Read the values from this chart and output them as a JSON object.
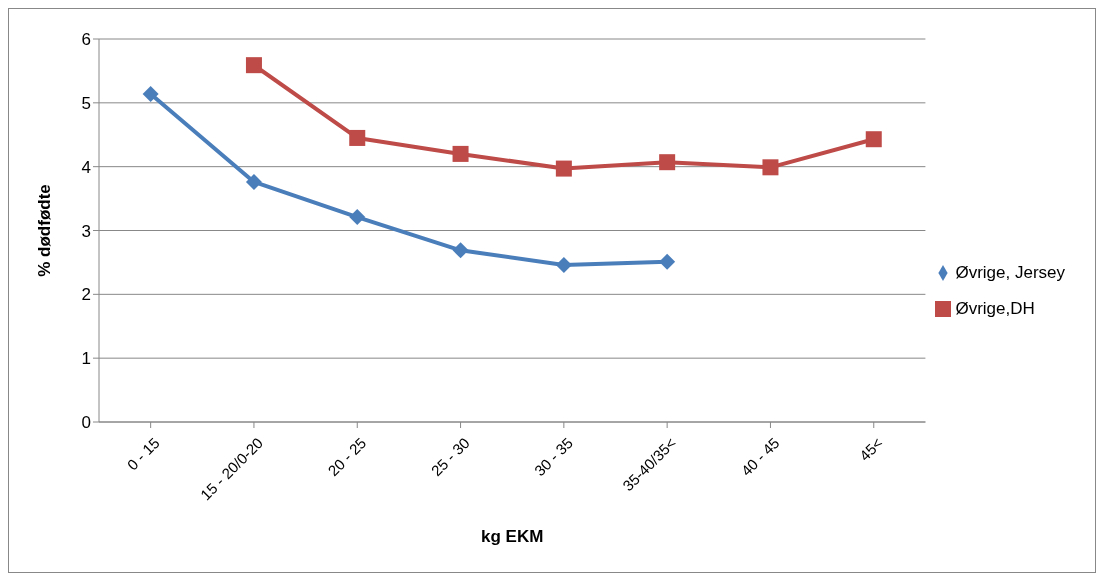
{
  "chart_data": {
    "type": "line",
    "xlabel": "kg EKM",
    "ylabel": "% dødfødte",
    "categories": [
      "0 - 15",
      "15 - 20/0-20",
      "20 - 25",
      "25 - 30",
      "30 - 35",
      "35-40/35<",
      "40 - 45",
      "45<"
    ],
    "series": [
      {
        "name": "Øvrige, Jersey",
        "color": "#4a7ebb",
        "marker": "diamond",
        "values": [
          5.14,
          3.76,
          3.21,
          2.69,
          2.46,
          2.51,
          null,
          null
        ]
      },
      {
        "name": "Øvrige,DH",
        "color": "#be4b48",
        "marker": "square",
        "values": [
          null,
          5.59,
          4.45,
          4.2,
          3.97,
          4.07,
          3.99,
          4.43
        ]
      }
    ],
    "ylim": [
      0,
      6
    ],
    "yticks": [
      0,
      1,
      2,
      3,
      4,
      5,
      6
    ],
    "grid": "y",
    "legend": "right",
    "line_style": "solid"
  }
}
